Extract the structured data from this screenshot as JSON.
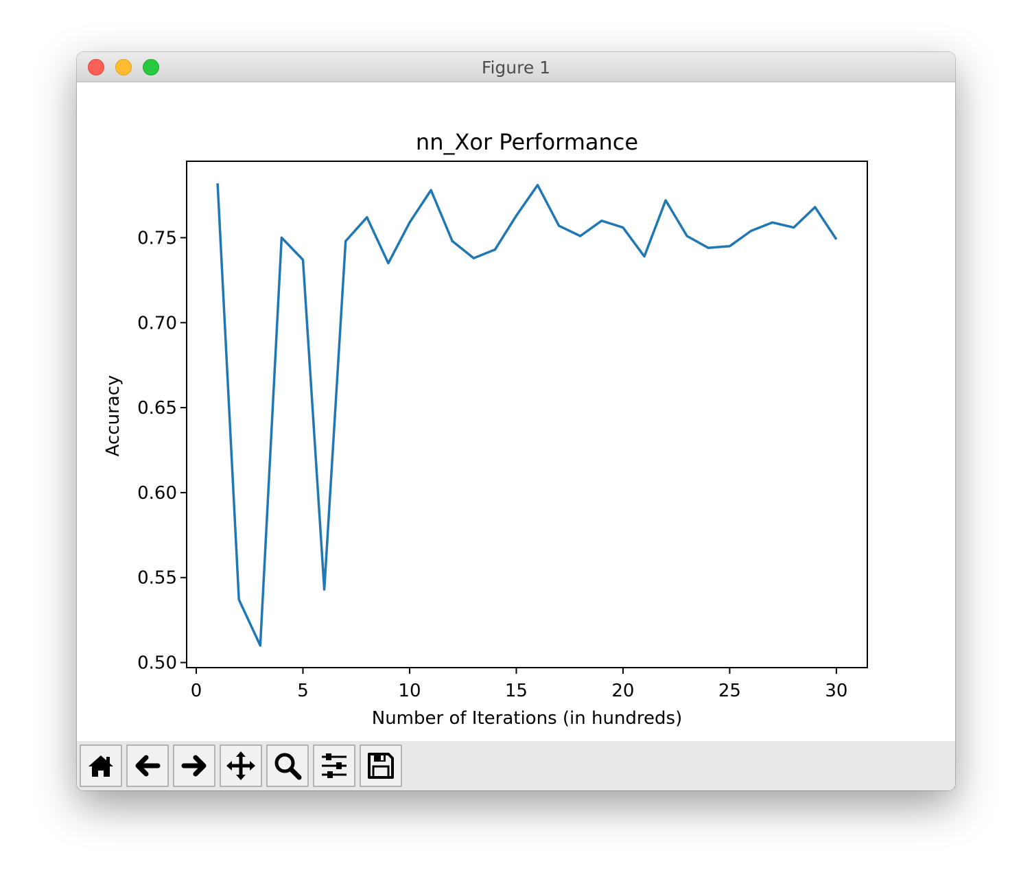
{
  "window": {
    "title": "Figure 1"
  },
  "toolbar": {
    "buttons": [
      {
        "icon": "home-icon"
      },
      {
        "icon": "back-arrow-icon"
      },
      {
        "icon": "forward-arrow-icon"
      },
      {
        "icon": "pan-move-icon"
      },
      {
        "icon": "zoom-magnifier-icon"
      },
      {
        "icon": "configure-subplots-icon"
      },
      {
        "icon": "save-floppy-icon"
      }
    ]
  },
  "colors": {
    "line": "#1f77b4",
    "close": "#fe5f57",
    "minimize": "#febc2e",
    "maximize": "#28c840"
  },
  "chart_data": {
    "type": "line",
    "title": "nn_Xor Performance",
    "xlabel": "Number of Iterations (in hundreds)",
    "ylabel": "Accuracy",
    "xlim": [
      -0.45,
      31.45
    ],
    "ylim": [
      0.497,
      0.795
    ],
    "xticks": [
      0,
      5,
      10,
      15,
      20,
      25,
      30
    ],
    "xtick_labels": [
      "0",
      "5",
      "10",
      "15",
      "20",
      "25",
      "30"
    ],
    "yticks": [
      0.5,
      0.55,
      0.6,
      0.65,
      0.7,
      0.75
    ],
    "ytick_labels": [
      "0.50",
      "0.55",
      "0.60",
      "0.65",
      "0.70",
      "0.75"
    ],
    "grid": false,
    "series": [
      {
        "x": [
          1,
          2,
          3,
          4,
          5,
          6,
          7,
          8,
          9,
          10,
          11,
          12,
          13,
          14,
          15,
          16,
          17,
          18,
          19,
          20,
          21,
          22,
          23,
          24,
          25,
          26,
          27,
          28,
          29,
          30
        ],
        "y": [
          0.782,
          0.537,
          0.51,
          0.75,
          0.737,
          0.543,
          0.748,
          0.762,
          0.735,
          0.759,
          0.778,
          0.748,
          0.738,
          0.743,
          0.763,
          0.781,
          0.757,
          0.751,
          0.76,
          0.756,
          0.739,
          0.772,
          0.751,
          0.744,
          0.745,
          0.754,
          0.759,
          0.756,
          0.768,
          0.749
        ]
      }
    ]
  }
}
